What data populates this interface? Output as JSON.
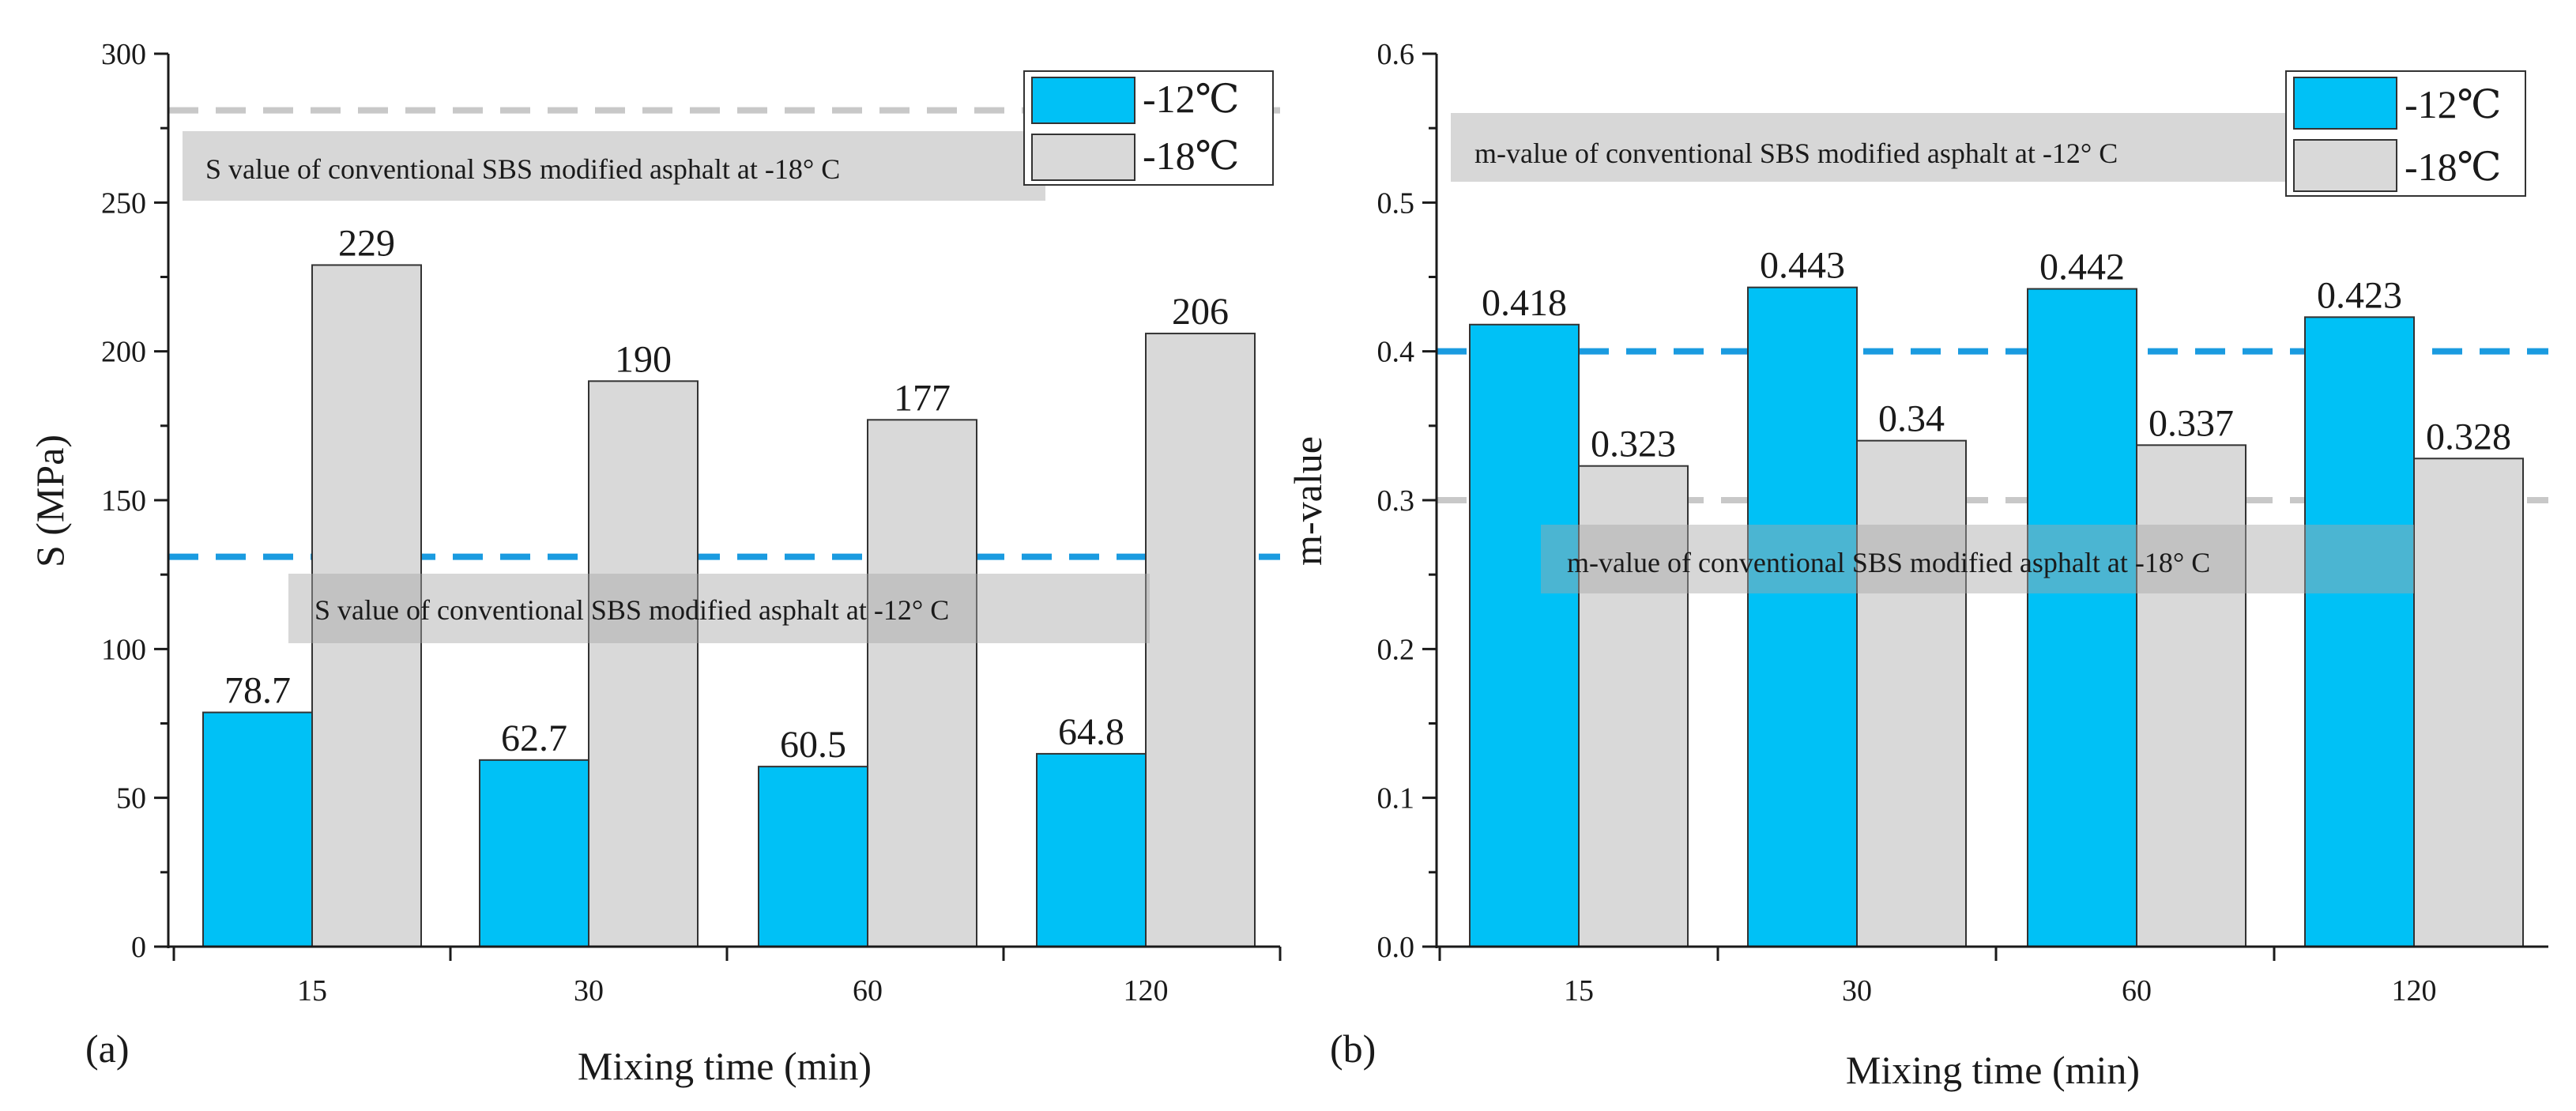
{
  "chart_data": [
    {
      "type": "bar",
      "panel_label": "(a)",
      "xlabel": "Mixing time (min)",
      "ylabel": "S (MPa)",
      "categories": [
        "15",
        "30",
        "60",
        "120"
      ],
      "ylim": [
        0,
        300
      ],
      "yticks": [
        0,
        50,
        100,
        150,
        200,
        250,
        300
      ],
      "ytick_labels": [
        "0",
        "50",
        "100",
        "150",
        "200",
        "250",
        "300"
      ],
      "series": [
        {
          "name": "-12℃",
          "color": "#00c1f6",
          "values": [
            78.7,
            62.7,
            60.5,
            64.8
          ],
          "labels": [
            "78.7",
            "62.7",
            "60.5",
            "64.8"
          ]
        },
        {
          "name": "-18℃",
          "color": "#d9d9d9",
          "values": [
            229,
            190,
            177,
            206
          ],
          "labels": [
            "229",
            "190",
            "177",
            "206"
          ]
        }
      ],
      "reference_lines": [
        {
          "value": 281,
          "color": "#c8c8c8",
          "label": "S value of conventional SBS modified asphalt at -18° C"
        },
        {
          "value": 131,
          "color": "#1a9be0",
          "label": "S value of conventional SBS modified asphalt at -12° C"
        }
      ],
      "legend_position": "top-right"
    },
    {
      "type": "bar",
      "panel_label": "(b)",
      "xlabel": "Mixing time (min)",
      "ylabel": "m-value",
      "categories": [
        "15",
        "30",
        "60",
        "120"
      ],
      "ylim": [
        0,
        0.6
      ],
      "yticks": [
        0,
        0.1,
        0.2,
        0.3,
        0.4,
        0.5,
        0.6
      ],
      "ytick_labels": [
        "0.0",
        "0.1",
        "0.2",
        "0.3",
        "0.4",
        "0.5",
        "0.6"
      ],
      "series": [
        {
          "name": "-12℃",
          "color": "#00c1f6",
          "values": [
            0.418,
            0.443,
            0.442,
            0.423
          ],
          "labels": [
            "0.418",
            "0.443",
            "0.442",
            "0.423"
          ]
        },
        {
          "name": "-18℃",
          "color": "#d9d9d9",
          "values": [
            0.323,
            0.34,
            0.337,
            0.328
          ],
          "labels": [
            "0.323",
            "0.34",
            "0.337",
            "0.328"
          ]
        }
      ],
      "reference_lines": [
        {
          "value": 0.4,
          "color": "#1a9be0",
          "label": "m-value of conventional SBS modified asphalt at -12° C"
        },
        {
          "value": 0.3,
          "color": "#c8c8c8",
          "label": "m-value of conventional SBS modified asphalt at -18° C"
        }
      ],
      "legend_position": "top-right"
    }
  ]
}
